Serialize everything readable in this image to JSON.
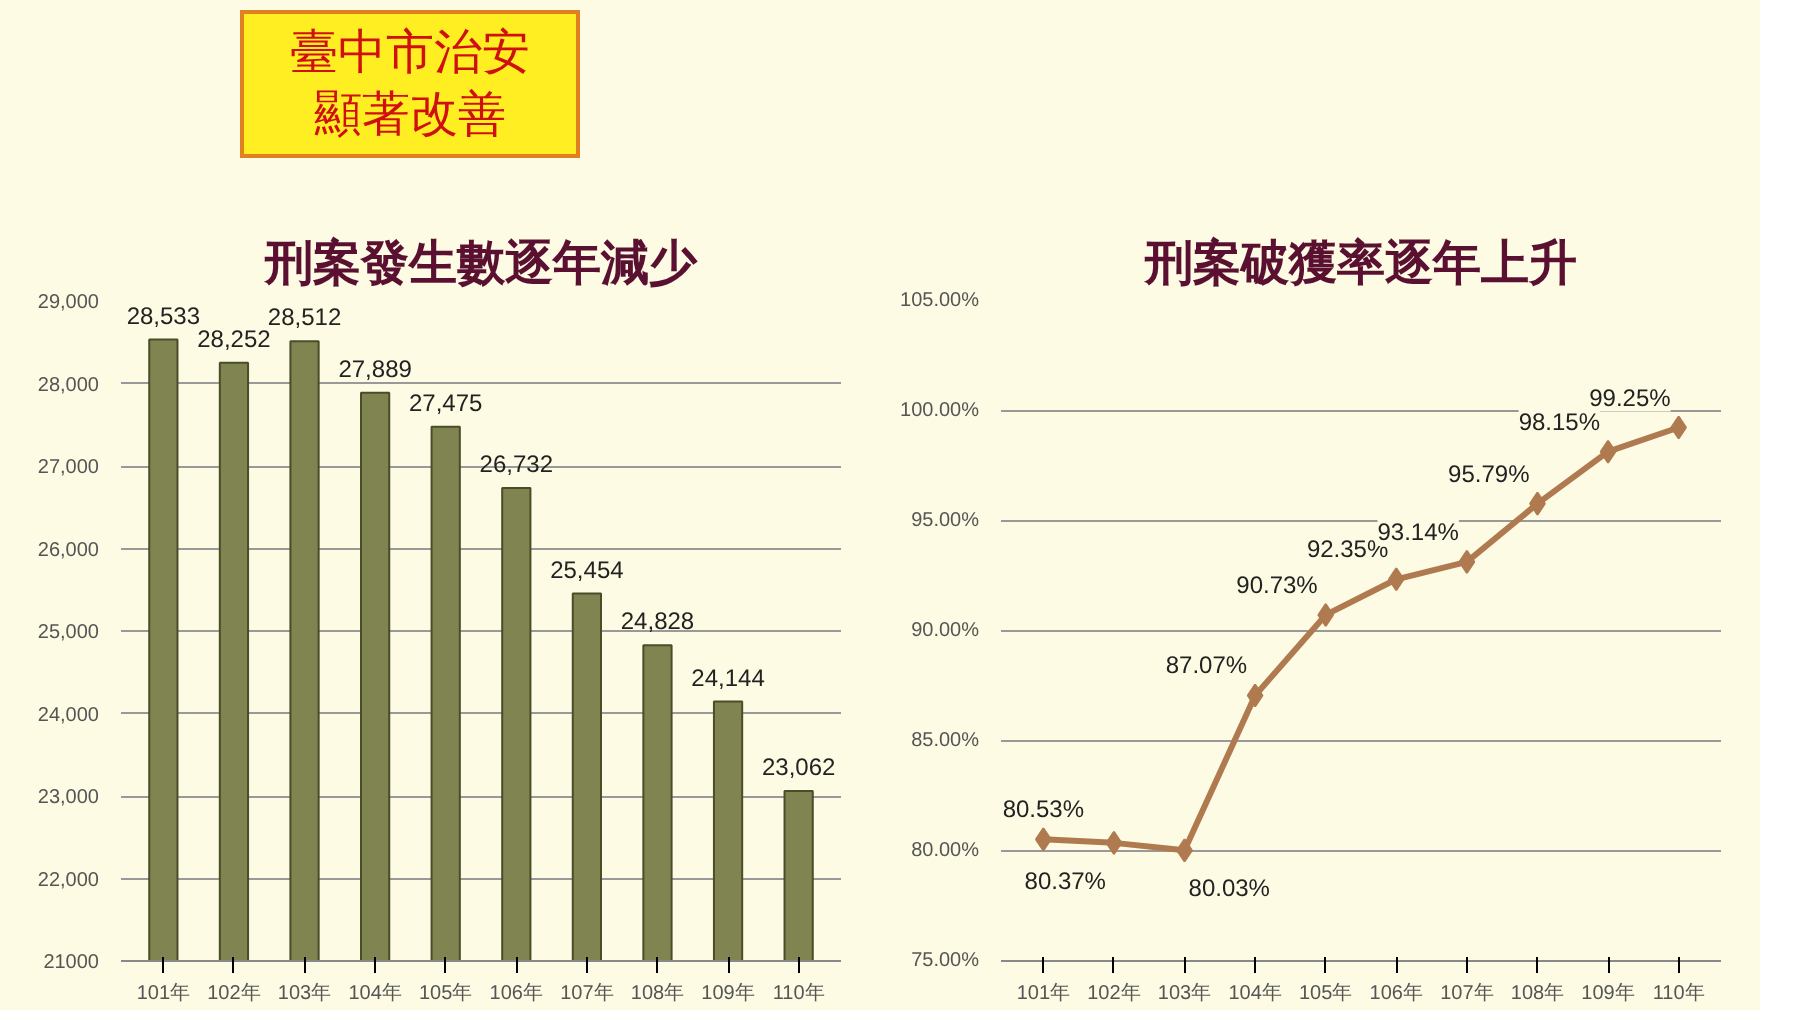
{
  "chart_data": [
    {
      "type": "bar",
      "title": "刑案發生數逐年減少",
      "annotations": [
        "臺中市治安顯著改善"
      ],
      "categories": [
        "101年",
        "102年",
        "103年",
        "104年",
        "105年",
        "106年",
        "107年",
        "108年",
        "109年",
        "110年"
      ],
      "values": [
        28533,
        28252,
        28512,
        27889,
        27475,
        26732,
        25454,
        24828,
        24144,
        23062
      ],
      "value_labels": [
        "28,533",
        "28,252",
        "28,512",
        "27,889",
        "27,475",
        "26,732",
        "25,454",
        "24,828",
        "24,144",
        "23,062"
      ],
      "color": "#7f8450",
      "ylim": [
        21000,
        29000
      ],
      "yticks": [
        {
          "value": 21000,
          "label": "21000"
        },
        {
          "value": 22000,
          "label": "22,000"
        },
        {
          "value": 23000,
          "label": "23,000"
        },
        {
          "value": 24000,
          "label": "24,000"
        },
        {
          "value": 25000,
          "label": "25,000"
        },
        {
          "value": 26000,
          "label": "26,000"
        },
        {
          "value": 27000,
          "label": "27,000"
        },
        {
          "value": 28000,
          "label": "28,000"
        },
        {
          "value": 29000,
          "label": "29,000"
        }
      ],
      "grid": "y"
    },
    {
      "type": "line",
      "title": "刑案破獲率逐年上升",
      "categories": [
        "101年",
        "102年",
        "103年",
        "104年",
        "105年",
        "106年",
        "107年",
        "108年",
        "109年",
        "110年"
      ],
      "values": [
        80.53,
        80.37,
        80.03,
        87.07,
        90.73,
        92.35,
        93.14,
        95.79,
        98.15,
        99.25
      ],
      "value_labels": [
        "80.53%",
        "80.37%",
        "80.03%",
        "87.07%",
        "90.73%",
        "92.35%",
        "93.14%",
        "95.79%",
        "98.15%",
        "99.25%"
      ],
      "color": "#b07a50",
      "marker": "diamond",
      "line_style": "solid",
      "ylim": [
        75,
        105
      ],
      "yticks": [
        {
          "value": 75,
          "label": "75.00%"
        },
        {
          "value": 80,
          "label": "80.00%"
        },
        {
          "value": 85,
          "label": "85.00%"
        },
        {
          "value": 90,
          "label": "90.00%"
        },
        {
          "value": 95,
          "label": "95.00%"
        },
        {
          "value": 100,
          "label": "100.00%"
        },
        {
          "value": 105,
          "label": "105.00%"
        }
      ],
      "grid": "y"
    }
  ]
}
